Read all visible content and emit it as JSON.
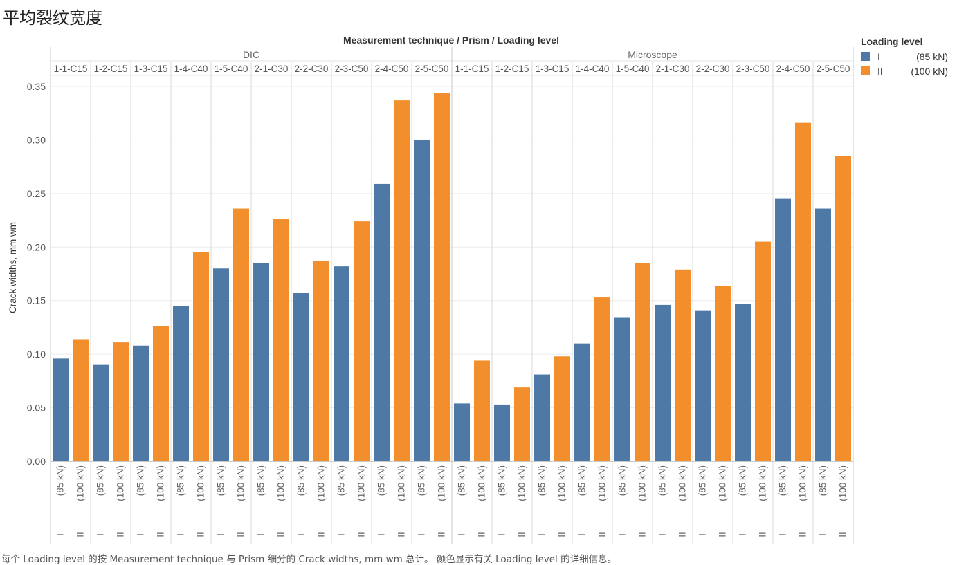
{
  "page_title": "平均裂纹宽度",
  "footer_note": "每个 Loading level 的按 Measurement technique 与 Prism 细分的 Crack widths, mm wm 总计。 颜色显示有关 Loading level 的详细信息。",
  "chart_data": {
    "type": "bar",
    "header_title": "Measurement technique  /  Prism  /  Loading level",
    "ylabel": "Crack widths, mm wm",
    "ylim": [
      0,
      0.35
    ],
    "yticks": [
      "0.00",
      "0.05",
      "0.10",
      "0.15",
      "0.20",
      "0.25",
      "0.30",
      "0.35"
    ],
    "legend": {
      "title": "Loading level",
      "placement": "top-right",
      "items": [
        {
          "label": "I",
          "sub": "(85 kN)",
          "color": "#4e79a7"
        },
        {
          "label": "II",
          "sub": "(100 kN)",
          "color": "#f28e2b"
        }
      ]
    },
    "level_labels": [
      {
        "sub": "(85 kN)",
        "roman": "I"
      },
      {
        "sub": "(100 kN)",
        "roman": "II"
      }
    ],
    "groups": [
      {
        "technique": "DIC",
        "prisms": [
          "1-1-C15",
          "1-2-C15",
          "1-3-C15",
          "1-4-C40",
          "1-5-C40",
          "2-1-C30",
          "2-2-C30",
          "2-3-C50",
          "2-4-C50",
          "2-5-C50"
        ],
        "series": [
          {
            "level": "I",
            "values": [
              0.096,
              0.09,
              0.108,
              0.145,
              0.18,
              0.185,
              0.157,
              0.182,
              0.259,
              0.3
            ]
          },
          {
            "level": "II",
            "values": [
              0.114,
              0.111,
              0.126,
              0.195,
              0.236,
              0.226,
              0.187,
              0.224,
              0.337,
              0.344
            ]
          }
        ]
      },
      {
        "technique": "Microscope",
        "prisms": [
          "1-1-C15",
          "1-2-C15",
          "1-3-C15",
          "1-4-C40",
          "1-5-C40",
          "2-1-C30",
          "2-2-C30",
          "2-3-C50",
          "2-4-C50",
          "2-5-C50"
        ],
        "series": [
          {
            "level": "I",
            "values": [
              0.054,
              0.053,
              0.081,
              0.11,
              0.134,
              0.146,
              0.141,
              0.147,
              0.245,
              0.236
            ]
          },
          {
            "level": "II",
            "values": [
              0.094,
              0.069,
              0.098,
              0.153,
              0.185,
              0.179,
              0.164,
              0.205,
              0.316,
              0.285
            ]
          }
        ]
      }
    ]
  }
}
